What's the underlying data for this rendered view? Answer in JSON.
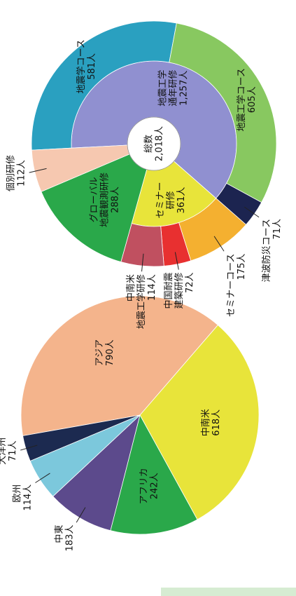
{
  "chart_data": [
    {
      "type": "pie",
      "categories": [
        "アジア",
        "中南米",
        "アフリカ",
        "中東",
        "欧州",
        "大洋州"
      ],
      "values": [
        790,
        618,
        242,
        183,
        114,
        71
      ],
      "value_labels": [
        "790人",
        "618人",
        "242人",
        "183人",
        "114人",
        "71人"
      ],
      "colors": [
        "#f4b48c",
        "#e8e43a",
        "#2aa84a",
        "#5c4a8c",
        "#7cc8dc",
        "#1c2a50"
      ]
    },
    {
      "type": "sunburst",
      "center_label": "総数",
      "total": 2018,
      "total_label": "2,018人",
      "inner": {
        "categories": [
          "地震工学\n通年研修",
          "セミナー\n研修"
        ],
        "values": [
          1257,
          361
        ],
        "value_labels": [
          "1,257人",
          "361人"
        ],
        "colors": [
          "#9090d0",
          "#e8e43a"
        ]
      },
      "outer": {
        "categories": [
          "地震学コース",
          "地震工学コース",
          "津波防災コース",
          "セミナーコース",
          "中国耐震\n建築研修",
          "中南米\n地震工学研修",
          "グローバル\n地震観測研修",
          "個別研修"
        ],
        "values": [
          581,
          605,
          71,
          175,
          72,
          114,
          288,
          112
        ],
        "value_labels": [
          "581人",
          "605人",
          "71人",
          "175人",
          "72人",
          "114人",
          "288人",
          "112人"
        ],
        "colors": [
          "#2aa0c0",
          "#88c860",
          "#1c2450",
          "#f4b030",
          "#e83030",
          "#c05060",
          "#2aa84a",
          "#f6c8b0"
        ]
      }
    }
  ]
}
